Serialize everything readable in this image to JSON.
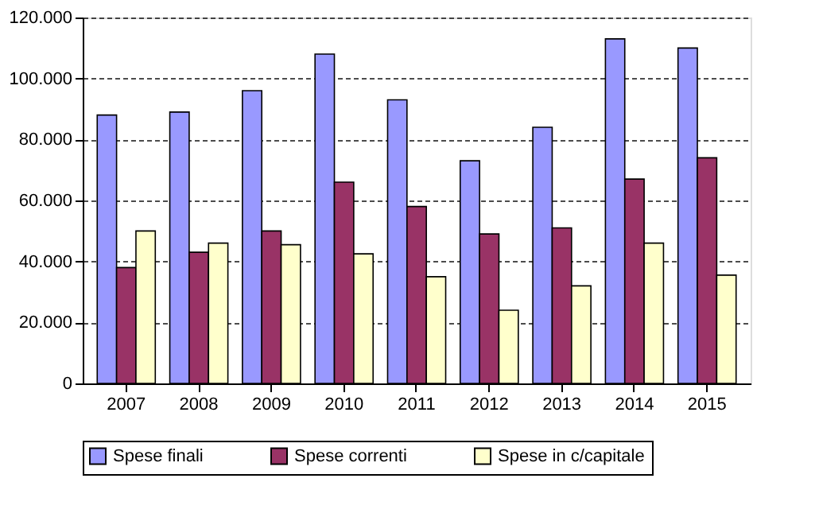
{
  "chart_data": {
    "type": "bar",
    "categories": [
      "2007",
      "2008",
      "2009",
      "2010",
      "2011",
      "2012",
      "2013",
      "2014",
      "2015"
    ],
    "series": [
      {
        "name": "Spese finali",
        "color": "#9999ff",
        "values": [
          88000,
          89000,
          96000,
          108000,
          93000,
          73000,
          84000,
          113000,
          110000
        ]
      },
      {
        "name": "Spese correnti",
        "color": "#993366",
        "values": [
          38000,
          43000,
          50000,
          66000,
          58000,
          49000,
          51000,
          67000,
          74000
        ]
      },
      {
        "name": "Spese in c/capitale",
        "color": "#ffffcc",
        "values": [
          50000,
          46000,
          45500,
          42500,
          35000,
          24000,
          32000,
          46000,
          35500
        ]
      }
    ],
    "ylim": [
      0,
      120000
    ],
    "yticks": [
      {
        "value": 0,
        "label": "0"
      },
      {
        "value": 20000,
        "label": "20.000"
      },
      {
        "value": 40000,
        "label": "40.000"
      },
      {
        "value": 60000,
        "label": "60.000"
      },
      {
        "value": 80000,
        "label": "80.000"
      },
      {
        "value": 100000,
        "label": "100.000"
      },
      {
        "value": 120000,
        "label": "120.000"
      }
    ],
    "grid": "y",
    "legend": "bottom"
  }
}
